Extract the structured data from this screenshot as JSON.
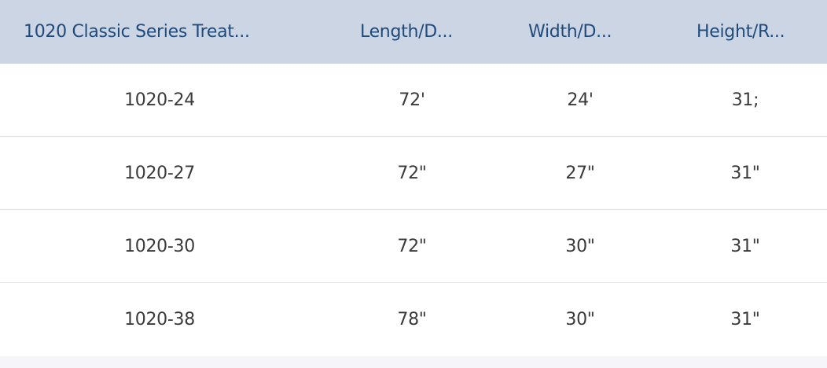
{
  "table": {
    "headers": [
      "1020 Classic Series Treat...",
      "Length/D...",
      "Width/D...",
      "Height/R..."
    ],
    "rows": [
      [
        "1020-24",
        "72'",
        "24'",
        "31;"
      ],
      [
        "1020-27",
        "72\"",
        "27\"",
        "31\""
      ],
      [
        "1020-30",
        "72\"",
        "30\"",
        "31\""
      ],
      [
        "1020-38",
        "78\"",
        "30\"",
        "31\""
      ]
    ]
  },
  "colors": {
    "header_bg": "#cbd5e3",
    "header_text": "#1f4a7c",
    "body_text": "#3a3a3a"
  }
}
